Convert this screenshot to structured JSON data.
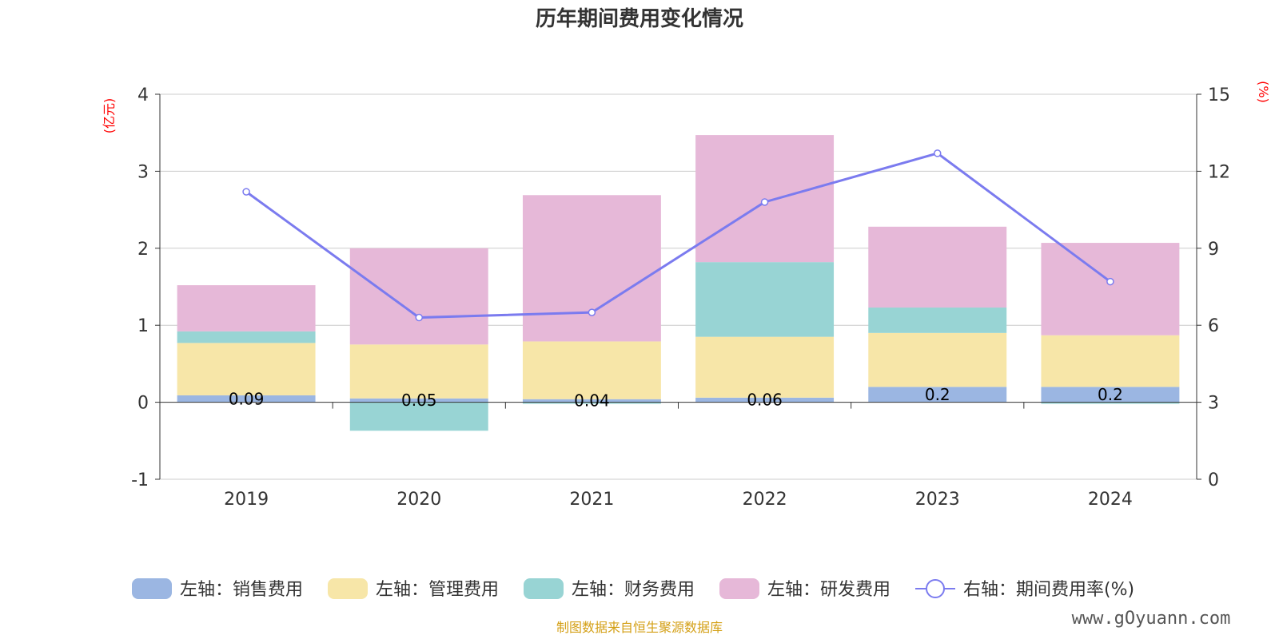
{
  "chart_data": {
    "type": "bar",
    "title": "历年期间费用变化情况",
    "y_left_unit": "(亿元)",
    "y_right_unit": "(%)",
    "categories": [
      "2019",
      "2020",
      "2021",
      "2022",
      "2023",
      "2024"
    ],
    "ylim_left": [
      -1,
      4
    ],
    "yticks_left": [
      "-1",
      "0",
      "1",
      "2",
      "3",
      "4"
    ],
    "ylim_right": [
      0,
      15
    ],
    "yticks_right": [
      "0",
      "3",
      "6",
      "9",
      "12",
      "15"
    ],
    "grid": true,
    "stacked": true,
    "series": [
      {
        "name": "左轴：销售费用",
        "axis": "left",
        "color": "#9bb6e2",
        "values": [
          0.09,
          0.05,
          0.04,
          0.06,
          0.2,
          0.2
        ],
        "labels": [
          "0.09",
          "0.05",
          "0.04",
          "0.06",
          "0.2",
          "0.2"
        ]
      },
      {
        "name": "左轴：管理费用",
        "axis": "left",
        "color": "#f7e6a8",
        "values": [
          0.68,
          0.7,
          0.75,
          0.79,
          0.7,
          0.67
        ]
      },
      {
        "name": "左轴：财务费用",
        "axis": "left",
        "color": "#98d4d4",
        "values": [
          0.15,
          -0.37,
          -0.02,
          0.97,
          0.33,
          -0.02
        ]
      },
      {
        "name": "左轴：研发费用",
        "axis": "left",
        "color": "#e6b8d8",
        "values": [
          0.6,
          1.25,
          1.9,
          1.65,
          1.05,
          1.2
        ]
      },
      {
        "name": "右轴：期间费用率(%)",
        "axis": "right",
        "color": "#7b7bef",
        "type": "line",
        "values": [
          11.2,
          6.3,
          6.5,
          10.8,
          12.7,
          7.7
        ]
      }
    ],
    "legend_position": "bottom"
  },
  "footer": {
    "source": "制图数据来自恒生聚源数据库",
    "watermark": "www.gOyuann.com"
  }
}
